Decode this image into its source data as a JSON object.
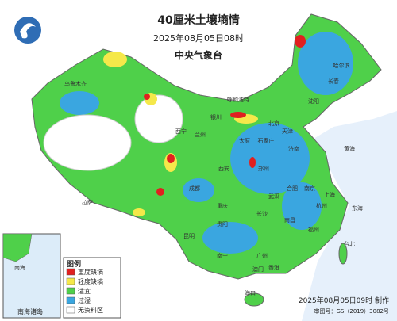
{
  "header": {
    "title": "40厘米土壤墒情",
    "date": "2025年08月05日08时",
    "agency": "中央气象台"
  },
  "legend": {
    "title": "图例",
    "items": [
      "重度缺墒",
      "轻度缺墒",
      "适宜",
      "过湿",
      "无资料区"
    ]
  },
  "inset": {
    "label": "南海诸岛"
  },
  "footer": {
    "made": "2025年08月05日09时 制作",
    "approval": "审图号：GS（2019）3082号"
  },
  "map_labels": [
    "北京",
    "天津",
    "石家庄",
    "太原",
    "济南",
    "郑州",
    "西安",
    "南京",
    "合肥",
    "上海",
    "杭州",
    "武汉",
    "长沙",
    "南昌",
    "福州",
    "台北",
    "广州",
    "香港",
    "澳门",
    "海口",
    "南宁",
    "贵阳",
    "昆明",
    "成都",
    "重庆",
    "兰州",
    "西宁",
    "银川",
    "呼和浩特",
    "沈阳",
    "长春",
    "哈尔滨",
    "拉萨",
    "乌鲁木齐",
    "黄海",
    "东海",
    "南海"
  ]
}
